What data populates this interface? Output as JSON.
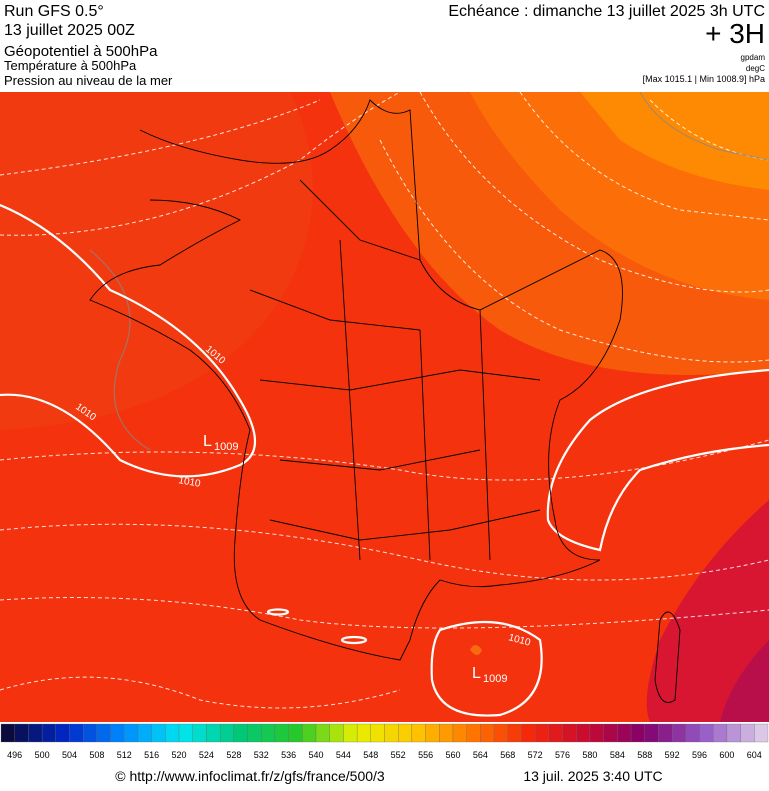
{
  "header": {
    "model": "Run GFS 0.5°",
    "run": "13 juillet 2025 00Z",
    "title": "Géopotentiel à 500hPa",
    "subtitle1": "Température à 500hPa",
    "subtitle2": "Pression au niveau de la mer",
    "forecast": "Echéance : dimanche 13 juillet 2025 3h UTC",
    "lead": "+ 3H",
    "unit_height": "gpdam",
    "unit_temp": "degC",
    "pressure_range": "[Max 1015.1 | Min 1008.9] hPa"
  },
  "map": {
    "isobar_labels": [
      "1010",
      "1010",
      "1010",
      "1010"
    ],
    "lows": [
      {
        "letter": "L",
        "pressure": "1009"
      },
      {
        "letter": "L",
        "pressure": "1009"
      }
    ]
  },
  "scale": {
    "labels": [
      496,
      500,
      504,
      508,
      512,
      516,
      520,
      524,
      528,
      532,
      536,
      540,
      544,
      548,
      552,
      556,
      560,
      564,
      568,
      572,
      576,
      580,
      584,
      588,
      592,
      596,
      600,
      604
    ]
  },
  "footer": {
    "source": "© http://www.infoclimat.fr/z/gfs/france/500/3",
    "date": "13 juil. 2025  3:40 UTC"
  }
}
